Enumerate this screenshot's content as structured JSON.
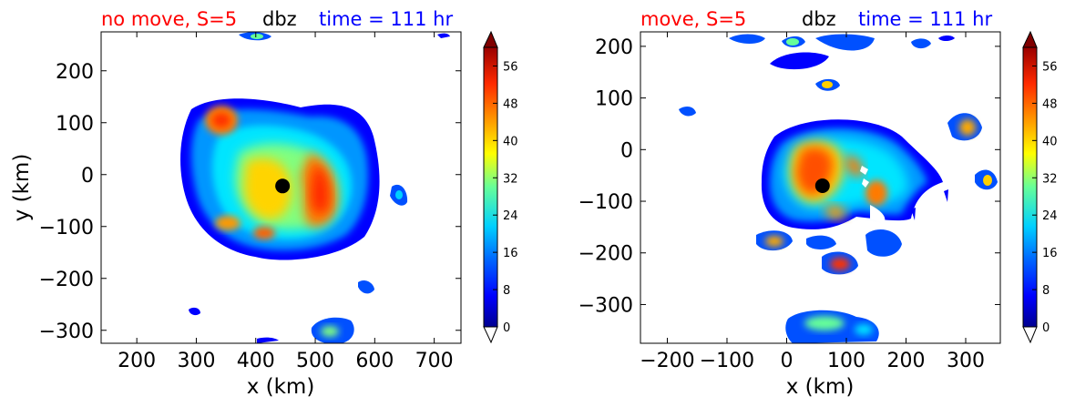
{
  "figure": {
    "colors": {
      "red_title": "#ff0000",
      "blue_title": "#0000ff",
      "black": "#000000"
    }
  },
  "chart_data": [
    {
      "type": "heatmap",
      "subtype": "filled-contour",
      "title_left": "no move, S=5",
      "title_center": "dbz",
      "title_right": "time = 111 hr",
      "xlabel": "x (km)",
      "ylabel": "y (km)",
      "xlim": [
        140,
        745
      ],
      "ylim": [
        -325,
        275
      ],
      "xticks": [
        200,
        300,
        400,
        500,
        600,
        700
      ],
      "yticks": [
        200,
        100,
        0,
        -100,
        -200,
        -300
      ],
      "center_marker": {
        "x": 445,
        "y": -22
      },
      "colorbar": {
        "min": 0,
        "max": 60,
        "ticks": [
          0,
          8,
          16,
          24,
          32,
          40,
          48,
          56
        ],
        "colormap": "jet",
        "extend": "both"
      }
    },
    {
      "type": "heatmap",
      "subtype": "filled-contour",
      "title_left": "move, S=5",
      "title_center": "dbz",
      "title_right": "time = 111 hr",
      "xlabel": "x (km)",
      "ylabel": "",
      "xlim": [
        -245,
        358
      ],
      "ylim": [
        -375,
        228
      ],
      "xticks": [
        -200,
        -100,
        0,
        100,
        200,
        300
      ],
      "yticks": [
        200,
        100,
        0,
        -100,
        -200,
        -300
      ],
      "center_marker": {
        "x": 60,
        "y": -70
      },
      "colorbar": {
        "min": 0,
        "max": 60,
        "ticks": [
          0,
          8,
          16,
          24,
          32,
          40,
          48,
          56
        ],
        "colormap": "jet",
        "extend": "both"
      }
    }
  ]
}
